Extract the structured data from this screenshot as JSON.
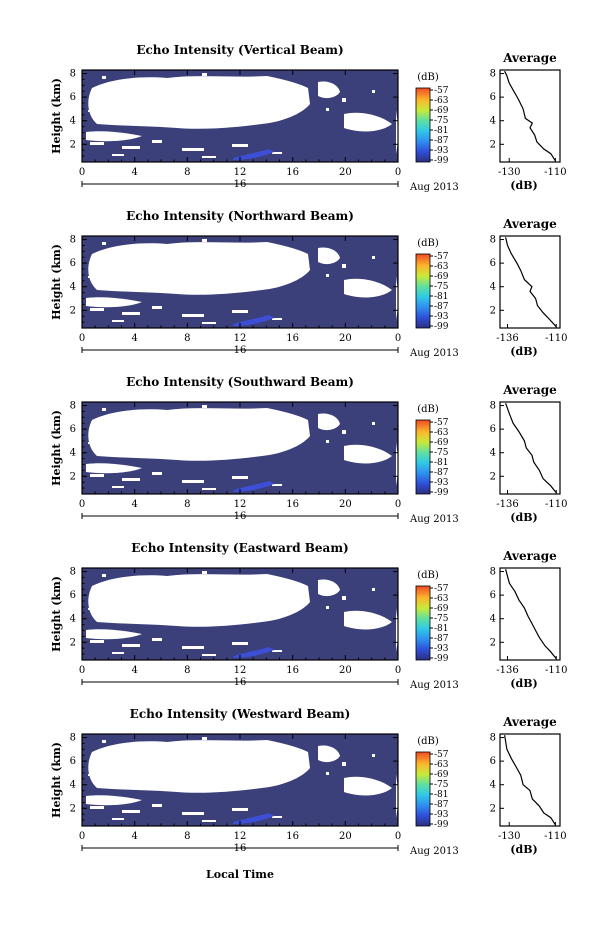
{
  "figure": {
    "time_axis_label": "Local Time",
    "date_label": "Aug 2013",
    "day_label": "16",
    "height_label": "Height (km)",
    "colorbar_unit": "(dB)",
    "average_title": "Average",
    "average_xlabel": "(dB)"
  },
  "colors": {
    "background": "#3b3f7a",
    "blue_patch": "#3d4fd6"
  },
  "chart_data": [
    {
      "type": "heatmap",
      "title": "Echo Intensity (Vertical Beam)",
      "x_ticks": [
        "0",
        "4",
        "8",
        "12",
        "16",
        "20",
        "0"
      ],
      "y_ticks": [
        "2",
        "4",
        "6",
        "8"
      ],
      "xlim": [
        0,
        24
      ],
      "ylim": [
        0.5,
        8.3
      ],
      "colorbar": {
        "ticks": [
          "-57",
          "-63",
          "-69",
          "-75",
          "-81",
          "-87",
          "-93",
          "-99"
        ]
      },
      "average": {
        "title": "Average",
        "xticks": [
          "-130",
          "-110"
        ],
        "xlim": [
          -134,
          -108
        ],
        "yticks": [
          "2",
          "4",
          "6",
          "8"
        ],
        "profile": [
          [
            -110,
            0.6
          ],
          [
            -112,
            1.2
          ],
          [
            -115,
            1.6
          ],
          [
            -118,
            2.2
          ],
          [
            -119,
            2.8
          ],
          [
            -121,
            3.4
          ],
          [
            -120,
            3.8
          ],
          [
            -123,
            4.2
          ],
          [
            -124,
            5.0
          ],
          [
            -126,
            5.8
          ],
          [
            -128,
            6.5
          ],
          [
            -130,
            7.2
          ],
          [
            -131,
            7.8
          ],
          [
            -132,
            8.2
          ]
        ]
      }
    },
    {
      "type": "heatmap",
      "title": "Echo Intensity (Northward Beam)",
      "x_ticks": [
        "0",
        "4",
        "8",
        "12",
        "16",
        "20",
        "0"
      ],
      "y_ticks": [
        "2",
        "4",
        "6",
        "8"
      ],
      "xlim": [
        0,
        24
      ],
      "ylim": [
        0.5,
        8.3
      ],
      "colorbar": {
        "ticks": [
          "-57",
          "-63",
          "-69",
          "-75",
          "-81",
          "-87",
          "-93",
          "-99"
        ]
      },
      "average": {
        "title": "Average",
        "xticks": [
          "-136",
          "-110"
        ],
        "xlim": [
          -140,
          -108
        ],
        "yticks": [
          "2",
          "4",
          "6",
          "8"
        ],
        "profile": [
          [
            -110,
            0.6
          ],
          [
            -114,
            1.3
          ],
          [
            -117,
            1.8
          ],
          [
            -120,
            2.4
          ],
          [
            -121,
            3.0
          ],
          [
            -124,
            3.6
          ],
          [
            -123,
            4.0
          ],
          [
            -127,
            4.6
          ],
          [
            -129,
            5.4
          ],
          [
            -131,
            6.0
          ],
          [
            -134,
            6.8
          ],
          [
            -136,
            7.5
          ],
          [
            -137,
            8.2
          ]
        ]
      }
    },
    {
      "type": "heatmap",
      "title": "Echo Intensity (Southward Beam)",
      "x_ticks": [
        "0",
        "4",
        "8",
        "12",
        "16",
        "20",
        "0"
      ],
      "y_ticks": [
        "2",
        "4",
        "6",
        "8"
      ],
      "xlim": [
        0,
        24
      ],
      "ylim": [
        0.5,
        8.3
      ],
      "colorbar": {
        "ticks": [
          "-57",
          "-63",
          "-69",
          "-75",
          "-81",
          "-87",
          "-93",
          "-99"
        ]
      },
      "average": {
        "title": "Average",
        "xticks": [
          "-136",
          "-110"
        ],
        "xlim": [
          -140,
          -108
        ],
        "yticks": [
          "2",
          "4",
          "6",
          "8"
        ],
        "profile": [
          [
            -110,
            0.6
          ],
          [
            -113,
            1.2
          ],
          [
            -117,
            1.8
          ],
          [
            -119,
            2.5
          ],
          [
            -122,
            3.2
          ],
          [
            -123,
            3.8
          ],
          [
            -126,
            4.4
          ],
          [
            -127,
            5.0
          ],
          [
            -130,
            5.8
          ],
          [
            -133,
            6.5
          ],
          [
            -135,
            7.3
          ],
          [
            -137,
            8.2
          ]
        ]
      }
    },
    {
      "type": "heatmap",
      "title": "Echo Intensity (Eastward Beam)",
      "x_ticks": [
        "0",
        "4",
        "8",
        "12",
        "16",
        "20",
        "0"
      ],
      "y_ticks": [
        "2",
        "4",
        "6",
        "8"
      ],
      "xlim": [
        0,
        24
      ],
      "ylim": [
        0.5,
        8.3
      ],
      "colorbar": {
        "ticks": [
          "-57",
          "-63",
          "-69",
          "-75",
          "-81",
          "-87",
          "-93",
          "-99"
        ]
      },
      "average": {
        "title": "Average",
        "xticks": [
          "-136",
          "-110"
        ],
        "xlim": [
          -140,
          -108
        ],
        "yticks": [
          "2",
          "4",
          "6",
          "8"
        ],
        "profile": [
          [
            -110,
            0.6
          ],
          [
            -113,
            1.2
          ],
          [
            -116,
            1.7
          ],
          [
            -119,
            2.4
          ],
          [
            -121,
            3.0
          ],
          [
            -123,
            3.6
          ],
          [
            -125,
            4.2
          ],
          [
            -127,
            4.9
          ],
          [
            -130,
            5.6
          ],
          [
            -132,
            6.3
          ],
          [
            -135,
            7.0
          ],
          [
            -137,
            8.2
          ]
        ]
      }
    },
    {
      "type": "heatmap",
      "title": "Echo Intensity (Westward Beam)",
      "x_ticks": [
        "0",
        "4",
        "8",
        "12",
        "16",
        "20",
        "0"
      ],
      "y_ticks": [
        "2",
        "4",
        "6",
        "8"
      ],
      "xlim": [
        0,
        24
      ],
      "ylim": [
        0.5,
        8.3
      ],
      "colorbar": {
        "ticks": [
          "-57",
          "-63",
          "-69",
          "-75",
          "-81",
          "-87",
          "-93",
          "-99"
        ]
      },
      "average": {
        "title": "Average",
        "xticks": [
          "-130",
          "-110"
        ],
        "xlim": [
          -134,
          -108
        ],
        "yticks": [
          "2",
          "4",
          "6",
          "8"
        ],
        "profile": [
          [
            -110,
            0.6
          ],
          [
            -112,
            1.2
          ],
          [
            -115,
            1.6
          ],
          [
            -117,
            2.2
          ],
          [
            -120,
            2.8
          ],
          [
            -121,
            3.5
          ],
          [
            -124,
            4.0
          ],
          [
            -125,
            4.8
          ],
          [
            -127,
            5.5
          ],
          [
            -129,
            6.2
          ],
          [
            -131,
            7.0
          ],
          [
            -132,
            8.2
          ]
        ]
      }
    }
  ]
}
